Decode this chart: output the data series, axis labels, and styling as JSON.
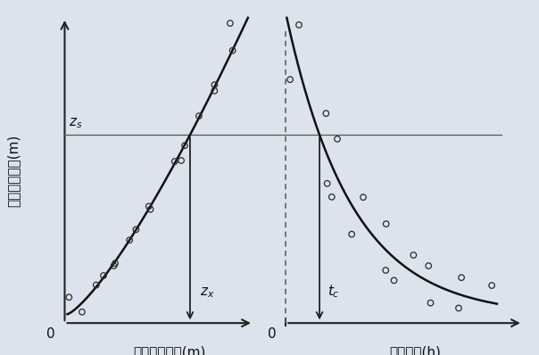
{
  "background_color": "#dde3ec",
  "plot_bg_color": "#edf0f5",
  "fig_width": 6.04,
  "fig_height": 3.98,
  "dpi": 100,
  "ylabel": "上游洪峰水位(m)",
  "xlabel_left": "下游洪峰水位(m)",
  "xlabel_right": "传播时间(h)",
  "zs_label": "$z_s$",
  "zx_label": "$z_x$",
  "tc_label": "$t_c$",
  "origin_left": "0",
  "origin_right": "0",
  "scatter_color": "none",
  "scatter_edge_color": "#2a2a2a",
  "curve_color": "#111111",
  "line_color": "#555555",
  "arrow_color": "#222222",
  "dashed_color": "#555555",
  "font_size": 11,
  "label_font_size": 11,
  "axis_lw": 1.5,
  "curve_lw": 1.8,
  "zs_lw": 0.9,
  "scatter_size": 22,
  "scatter_lw": 0.9
}
